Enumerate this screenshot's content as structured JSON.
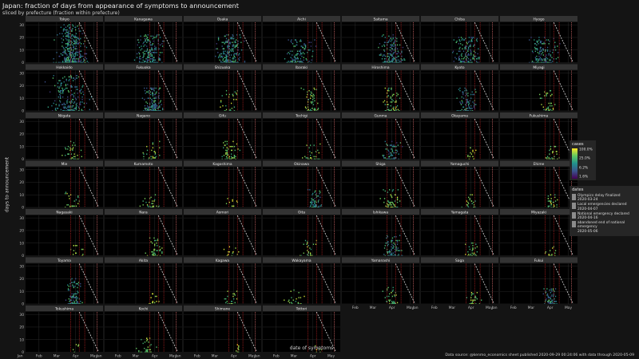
{
  "title": "Japan: fraction of days from appearance of symptoms to announcement",
  "subtitle": "sliced by prefecture (fraction within prefecture)",
  "caption": "Data source: @kenmo_economics sheet published 2020-09-29 00:24:06 with data through 2020-05-09",
  "colors": {
    "background": "#141414",
    "panel": "#000000",
    "strip": "#333333",
    "grid": "#3a3a3a",
    "event_line": "#d62728",
    "limit_line": "#e0e0e0"
  },
  "chart_data": {
    "type": "heatmap",
    "facet_by": "prefecture",
    "xlabel": "date of symptoms",
    "ylabel": "days to announcement",
    "x_ticks": [
      "Jan",
      "Feb",
      "Mar",
      "Apr",
      "May"
    ],
    "y_ticks": [
      0,
      10,
      20,
      30
    ],
    "xlim": [
      "2020-01-10",
      "2020-05-16"
    ],
    "ylim": [
      0,
      32
    ],
    "grid": true,
    "color_legend": {
      "title": "cases",
      "scale": "log",
      "labels": [
        "100.0%",
        "25.0%",
        "6.2%",
        "1.6%"
      ],
      "values": [
        1.0,
        0.25,
        0.0625,
        0.0156
      ]
    },
    "date_lines": {
      "title": "dates",
      "entries": [
        {
          "label": "Olympics delay finalized",
          "date": "2020-03-24"
        },
        {
          "label": "Local emergencies declared",
          "date": "2020-04-07"
        },
        {
          "label": "National emergency declared",
          "date": "2020-04-16"
        },
        {
          "label": "abandoned end of national emergency",
          "date": "2020-05-06"
        }
      ]
    },
    "facets": [
      {
        "name": "Tokyo",
        "density": 1.0,
        "peak_day": 84,
        "spread": 22,
        "max_delay": 30
      },
      {
        "name": "Kanagawa",
        "density": 0.55,
        "peak_day": 82,
        "spread": 22,
        "max_delay": 22
      },
      {
        "name": "Osaka",
        "density": 0.6,
        "peak_day": 84,
        "spread": 20,
        "max_delay": 22
      },
      {
        "name": "Aichi",
        "density": 0.35,
        "peak_day": 70,
        "spread": 20,
        "max_delay": 18
      },
      {
        "name": "Saitama",
        "density": 0.5,
        "peak_day": 90,
        "spread": 18,
        "max_delay": 22
      },
      {
        "name": "Chiba",
        "density": 0.45,
        "peak_day": 85,
        "spread": 20,
        "max_delay": 20
      },
      {
        "name": "Hyogo",
        "density": 0.45,
        "peak_day": 80,
        "spread": 20,
        "max_delay": 20
      },
      {
        "name": "Hokkaido",
        "density": 0.6,
        "peak_day": 80,
        "spread": 28,
        "max_delay": 28
      },
      {
        "name": "Fukuoka",
        "density": 0.45,
        "peak_day": 88,
        "spread": 14,
        "max_delay": 18
      },
      {
        "name": "Shizuoka",
        "density": 0.08,
        "peak_day": 85,
        "spread": 18,
        "max_delay": 16
      },
      {
        "name": "Ibaraki",
        "density": 0.15,
        "peak_day": 88,
        "spread": 14,
        "max_delay": 18
      },
      {
        "name": "Hiroshima",
        "density": 0.18,
        "peak_day": 90,
        "spread": 14,
        "max_delay": 18
      },
      {
        "name": "Kyoto",
        "density": 0.25,
        "peak_day": 84,
        "spread": 16,
        "max_delay": 18
      },
      {
        "name": "Miyagi",
        "density": 0.1,
        "peak_day": 88,
        "spread": 16,
        "max_delay": 16
      },
      {
        "name": "Niigata",
        "density": 0.1,
        "peak_day": 88,
        "spread": 16,
        "max_delay": 14
      },
      {
        "name": "Nagano",
        "density": 0.08,
        "peak_day": 88,
        "spread": 16,
        "max_delay": 14
      },
      {
        "name": "Gifu",
        "density": 0.15,
        "peak_day": 84,
        "spread": 14,
        "max_delay": 14
      },
      {
        "name": "Tochigi",
        "density": 0.08,
        "peak_day": 90,
        "spread": 14,
        "max_delay": 12
      },
      {
        "name": "Gunma",
        "density": 0.2,
        "peak_day": 90,
        "spread": 14,
        "max_delay": 14
      },
      {
        "name": "Okayama",
        "density": 0.04,
        "peak_day": 92,
        "spread": 10,
        "max_delay": 10
      },
      {
        "name": "Fukushima",
        "density": 0.1,
        "peak_day": 95,
        "spread": 12,
        "max_delay": 10
      },
      {
        "name": "Mie",
        "density": 0.06,
        "peak_day": 88,
        "spread": 14,
        "max_delay": 12
      },
      {
        "name": "Kumamoto",
        "density": 0.08,
        "peak_day": 84,
        "spread": 16,
        "max_delay": 10
      },
      {
        "name": "Kagoshima",
        "density": 0.02,
        "peak_day": 88,
        "spread": 12,
        "max_delay": 8
      },
      {
        "name": "Okinawa",
        "density": 0.2,
        "peak_day": 95,
        "spread": 10,
        "max_delay": 14
      },
      {
        "name": "Shiga",
        "density": 0.15,
        "peak_day": 90,
        "spread": 14,
        "max_delay": 14
      },
      {
        "name": "Yamaguchi",
        "density": 0.06,
        "peak_day": 90,
        "spread": 12,
        "max_delay": 10
      },
      {
        "name": "Ehime",
        "density": 0.08,
        "peak_day": 95,
        "spread": 10,
        "max_delay": 10
      },
      {
        "name": "Nagasaki",
        "density": 0.03,
        "peak_day": 92,
        "spread": 12,
        "max_delay": 8
      },
      {
        "name": "Nara",
        "density": 0.12,
        "peak_day": 90,
        "spread": 14,
        "max_delay": 14
      },
      {
        "name": "Aomori",
        "density": 0.03,
        "peak_day": 88,
        "spread": 12,
        "max_delay": 8
      },
      {
        "name": "Oita",
        "density": 0.08,
        "peak_day": 82,
        "spread": 14,
        "max_delay": 12
      },
      {
        "name": "Ishikawa",
        "density": 0.25,
        "peak_day": 92,
        "spread": 14,
        "max_delay": 16
      },
      {
        "name": "Yamagata",
        "density": 0.08,
        "peak_day": 92,
        "spread": 10,
        "max_delay": 10
      },
      {
        "name": "Miyazaki",
        "density": 0.04,
        "peak_day": 92,
        "spread": 10,
        "max_delay": 8
      },
      {
        "name": "Toyama",
        "density": 0.3,
        "peak_day": 88,
        "spread": 12,
        "max_delay": 20
      },
      {
        "name": "Akita",
        "density": 0.03,
        "peak_day": 92,
        "spread": 10,
        "max_delay": 8
      },
      {
        "name": "Kagawa",
        "density": 0.06,
        "peak_day": 88,
        "spread": 12,
        "max_delay": 10
      },
      {
        "name": "Wakayama",
        "density": 0.06,
        "peak_day": 60,
        "spread": 20,
        "max_delay": 12
      },
      {
        "name": "Yamanashi",
        "density": 0.1,
        "peak_day": 90,
        "spread": 12,
        "max_delay": 14
      },
      {
        "name": "Saga",
        "density": 0.08,
        "peak_day": 95,
        "spread": 10,
        "max_delay": 10
      },
      {
        "name": "Fukui",
        "density": 0.2,
        "peak_day": 92,
        "spread": 10,
        "max_delay": 12
      },
      {
        "name": "Tokushima",
        "density": 0.01,
        "peak_day": 90,
        "spread": 10,
        "max_delay": 8
      },
      {
        "name": "Kochi",
        "density": 0.1,
        "peak_day": 78,
        "spread": 14,
        "max_delay": 12
      },
      {
        "name": "Shimane",
        "density": 0.02,
        "peak_day": 95,
        "spread": 8,
        "max_delay": 6
      },
      {
        "name": "Tottori",
        "density": 0.01,
        "peak_day": 98,
        "spread": 6,
        "max_delay": 5
      }
    ]
  }
}
